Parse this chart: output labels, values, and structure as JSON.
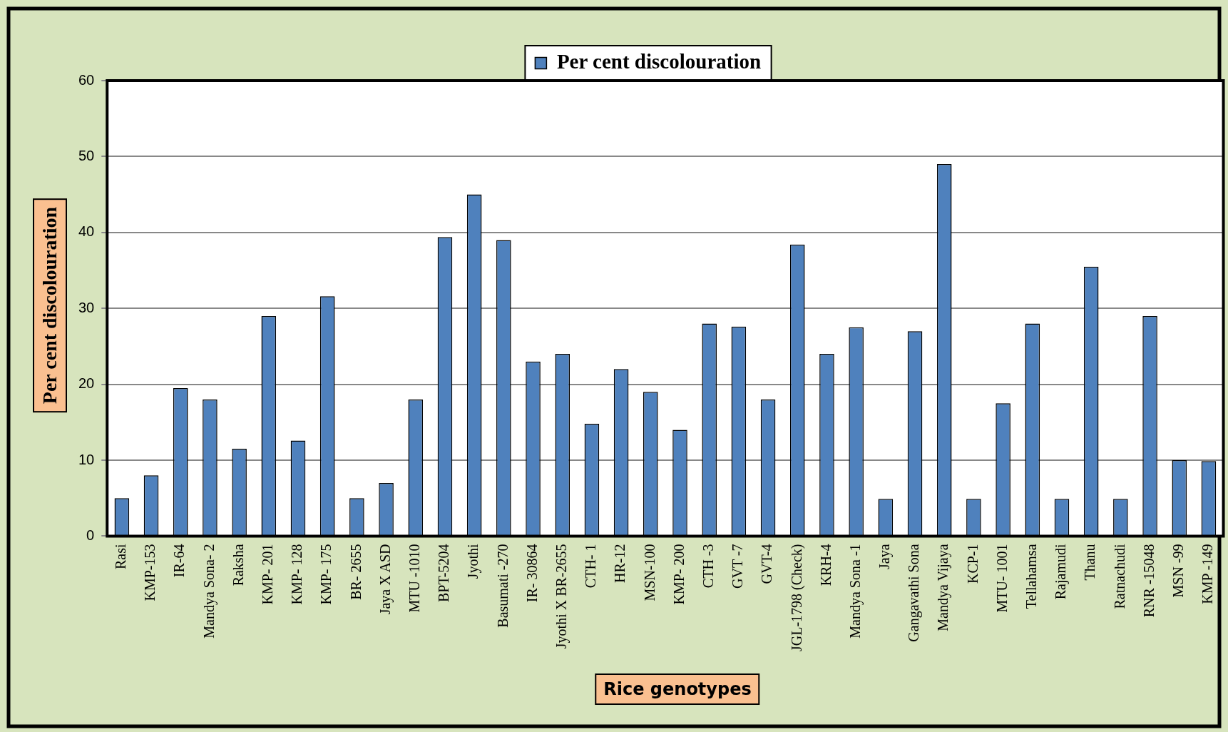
{
  "chart_data": {
    "type": "bar",
    "xlabel": "Rice genotypes",
    "ylabel": "Per cent discolouration",
    "categories": [
      "Rasi",
      "KMP-153",
      "IR-64",
      "Mandya Sona- 2",
      "Raksha",
      "KMP- 201",
      "KMP- 128",
      "KMP- 175",
      "BR- 2655",
      "Jaya X ASD",
      "MTU -1010",
      "BPT-5204",
      "Jyothi",
      "Basumati -270",
      "IR- 30864",
      "Jyothi X BR-2655",
      "CTH- 1",
      "HR-12",
      "MSN-100",
      "KMP- 200",
      "CTH -3",
      "GVT -7",
      "GVT-4",
      "JGL-1798 (Check)",
      "KRH-4",
      "Mandya Sona -1",
      "Jaya",
      "Gangavathi Sona",
      "Mandya Vijaya",
      "KCP-1",
      "MTU- 1001",
      "Tellahamsa",
      "Rajamudi",
      "Thanu",
      "Ratnachudi",
      "RNR -15048",
      "MSN -99",
      "KMP -149"
    ],
    "series": [
      {
        "name": "Per cent discolouration",
        "color": "#4f81bd",
        "values": [
          5,
          8,
          19.5,
          18,
          11.5,
          29,
          12.6,
          31.6,
          5,
          7,
          18,
          39.4,
          45,
          39,
          23,
          24,
          14.8,
          22,
          19,
          14,
          28,
          27.6,
          18,
          38.4,
          24,
          27.5,
          4.9,
          27,
          49,
          4.9,
          17.5,
          28,
          4.9,
          35.5,
          4.9,
          29,
          10,
          9.9
        ]
      }
    ],
    "ylim": [
      0,
      60
    ],
    "yticks": [
      0,
      10,
      20,
      30,
      40,
      50,
      60
    ],
    "grid": "y",
    "legend": "top"
  }
}
